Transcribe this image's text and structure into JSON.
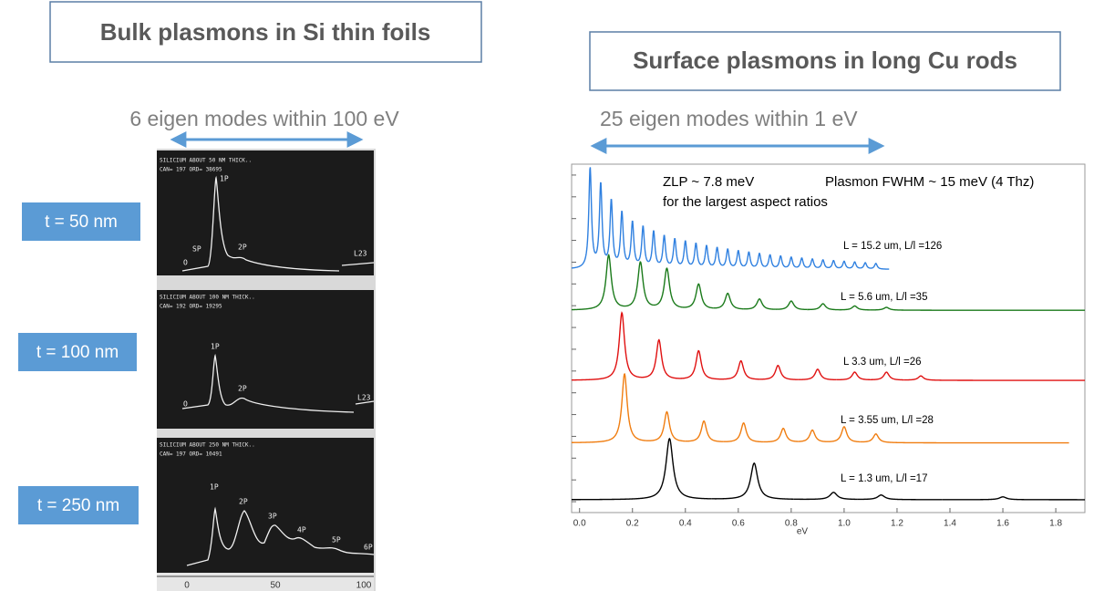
{
  "left": {
    "title": "Bulk plasmons in Si thin foils",
    "subtitle": "6 eigen modes within 100 eV",
    "thickness_labels": [
      "t = 50 nm",
      "t = 100 nm",
      "t = 250 nm"
    ],
    "panels": [
      {
        "header": "SILICIUM ABOUT 50 NM THICK..",
        "info": "CAN= 197 ORD= 38695",
        "peaks": [
          "O",
          "SP",
          "1P",
          "2P",
          "L23"
        ]
      },
      {
        "header": "SILICIUM ABOUT 100 NM THICK..",
        "info": "CAN= 192 ORD= 19295",
        "peaks": [
          "O",
          "1P",
          "2P",
          "L23"
        ]
      },
      {
        "header": "SILICIUM ABOUT 250 NM THICK..",
        "info": "CAN= 197 ORD= 10491",
        "peaks": [
          "1P",
          "2P",
          "3P",
          "4P",
          "5P",
          "6P"
        ]
      }
    ],
    "axis_labels": [
      "0",
      "50",
      "100"
    ]
  },
  "right": {
    "title": "Surface plasmons in long Cu rods",
    "subtitle": "25 eigen modes within 1 eV"
  },
  "chart_data": {
    "type": "line",
    "xlabel": "eV",
    "annotations": [
      "ZLP ~ 7.8 meV",
      "Plasmon FWHM ~ 15 meV (4 Thz)",
      "for the largest aspect ratios"
    ],
    "xlim": [
      -0.03,
      1.91
    ],
    "xticks": [
      {
        "value": 0,
        "label": "0.0"
      },
      0.2,
      0.4,
      0.6,
      0.8,
      {
        "value": 1,
        "label": "1.0"
      },
      1.2,
      1.4,
      1.6,
      1.8
    ],
    "ylim": [
      0,
      16
    ],
    "yticks": [
      0.5,
      1.5,
      2.5,
      3.5,
      4.5,
      5.5,
      6.5,
      7.5,
      8.5,
      9.5,
      10.5,
      11.5,
      12.5,
      13.5,
      14.5,
      15.5
    ],
    "series": [
      {
        "name": "L = 15.2 um, L/l =126",
        "color": "#2f80e0",
        "baseline": 11.17,
        "x_extent": [
          -0.03,
          1.17
        ],
        "x": [
          0.04,
          0.08,
          0.12,
          0.16,
          0.2,
          0.24,
          0.28,
          0.32,
          0.36,
          0.4,
          0.44,
          0.48,
          0.52,
          0.56,
          0.6,
          0.64,
          0.68,
          0.72,
          0.76,
          0.8,
          0.84,
          0.88,
          0.92,
          0.96,
          1.0,
          1.04,
          1.08,
          1.12
        ],
        "values": [
          15.77,
          15.0,
          14.23,
          13.7,
          13.26,
          13.05,
          12.84,
          12.64,
          12.5,
          12.4,
          12.3,
          12.2,
          12.12,
          12.05,
          11.98,
          11.92,
          11.86,
          11.8,
          11.75,
          11.7,
          11.66,
          11.62,
          11.58,
          11.55,
          11.52,
          11.49,
          11.46,
          11.43
        ]
      },
      {
        "name": "L = 5.6 um, L/l =35",
        "color": "#1a7a1a",
        "baseline": 9.29,
        "x_extent": [
          -0.03,
          1.91
        ],
        "x": [
          0.11,
          0.23,
          0.33,
          0.45,
          0.56,
          0.68,
          0.8,
          0.92,
          1.04,
          1.16
        ],
        "values": [
          11.8,
          11.46,
          11.17,
          10.46,
          10.04,
          9.79,
          9.7,
          9.58,
          9.48,
          9.42
        ]
      },
      {
        "name": "L 3.3 um, L/l =26",
        "color": "#e01010",
        "baseline": 6.07,
        "x_extent": [
          -0.03,
          1.91
        ],
        "x": [
          0.16,
          0.3,
          0.45,
          0.61,
          0.75,
          0.9,
          1.04,
          1.16,
          1.29
        ],
        "values": [
          9.16,
          7.9,
          7.41,
          6.95,
          6.74,
          6.57,
          6.44,
          6.44,
          6.27
        ]
      },
      {
        "name": "L = 3.55 um, L/l =28",
        "color": "#f07d10",
        "baseline": 3.2,
        "x_extent": [
          -0.03,
          1.85
        ],
        "x": [
          0.17,
          0.33,
          0.47,
          0.62,
          0.77,
          0.88,
          1.0,
          1.12
        ],
        "values": [
          6.36,
          4.6,
          4.18,
          4.1,
          3.85,
          3.77,
          3.93,
          3.6
        ]
      },
      {
        "name": "L = 1.3 um, L/l =17",
        "color": "#000000",
        "baseline": 0.59,
        "x_extent": [
          -0.03,
          1.91
        ],
        "x": [
          0.34,
          0.66,
          0.96,
          1.14,
          1.6
        ],
        "values": [
          3.39,
          2.26,
          0.92,
          0.8,
          0.72
        ]
      }
    ]
  }
}
